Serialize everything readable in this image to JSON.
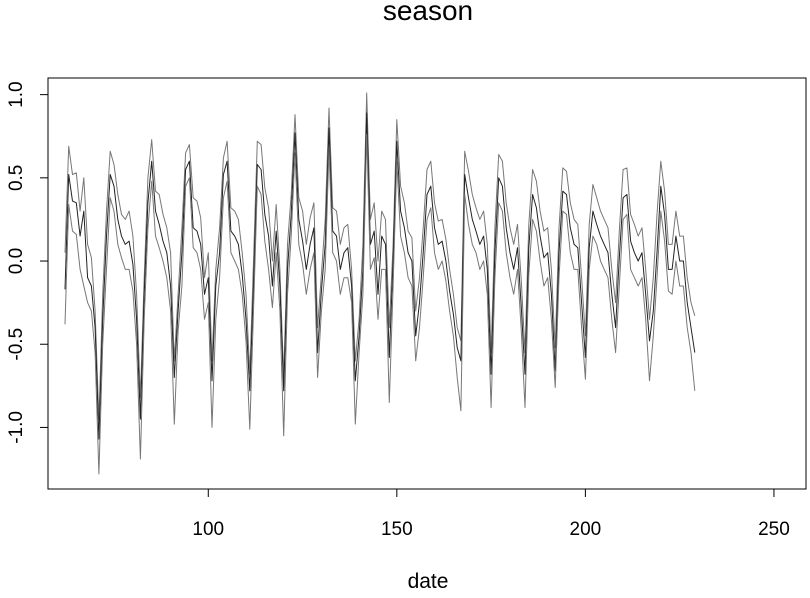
{
  "chart_data": {
    "type": "line",
    "title": "season",
    "xlabel": "date",
    "ylabel": "",
    "xlim": [
      57.5,
      258.5
    ],
    "ylim": [
      -1.37,
      1.1
    ],
    "x_ticks": [
      100,
      150,
      200,
      250
    ],
    "y_ticks": [
      -1.0,
      -0.5,
      0.0,
      0.5,
      1.0
    ],
    "y_tick_labels": [
      "-1.0",
      "-0.5",
      "0.0",
      "0.5",
      "1.0"
    ],
    "grid": false,
    "legend": "none",
    "x_start": 62,
    "x_step": 1,
    "series": [
      {
        "role": "upper",
        "color": "#777777",
        "values": [
          0.05,
          0.69,
          0.52,
          0.53,
          0.3,
          0.5,
          0.1,
          0.02,
          -0.3,
          -0.95,
          -0.2,
          0.3,
          0.66,
          0.58,
          0.4,
          0.28,
          0.25,
          0.3,
          0.15,
          -0.2,
          -0.82,
          -0.1,
          0.5,
          0.73,
          0.42,
          0.4,
          0.28,
          0.2,
          0.05,
          -0.6,
          -0.2,
          0.2,
          0.65,
          0.7,
          0.38,
          0.36,
          0.26,
          -0.1,
          0.05,
          -0.6,
          -0.05,
          0.2,
          0.62,
          0.72,
          0.32,
          0.3,
          0.25,
          0.05,
          -0.2,
          -0.68,
          0.0,
          0.72,
          0.7,
          0.44,
          0.32,
          0.0,
          0.34,
          -0.05,
          -0.7,
          0.1,
          0.4,
          0.88,
          0.38,
          0.3,
          0.1,
          0.26,
          0.35,
          -0.4,
          -0.08,
          0.25,
          0.92,
          0.32,
          0.3,
          0.1,
          0.2,
          0.22,
          -0.05,
          -0.6,
          -0.35,
          0.1,
          1.01,
          0.25,
          0.35,
          0.0,
          0.3,
          0.25,
          -0.4,
          0.1,
          0.85,
          0.45,
          0.35,
          0.18,
          0.14,
          -0.3,
          -0.1,
          0.2,
          0.55,
          0.6,
          0.35,
          0.24,
          0.25,
          0.13,
          -0.05,
          -0.2,
          -0.4,
          -0.48,
          0.66,
          0.54,
          0.4,
          0.32,
          0.25,
          0.3,
          0.1,
          -0.55,
          0.2,
          0.64,
          0.6,
          0.35,
          0.2,
          0.1,
          0.22,
          -0.12,
          -0.55,
          0.22,
          0.55,
          0.48,
          0.3,
          0.18,
          0.2,
          -0.05,
          -0.52,
          0.2,
          0.56,
          0.54,
          0.35,
          0.25,
          0.22,
          -0.1,
          -0.45,
          0.22,
          0.46,
          0.38,
          0.3,
          0.25,
          0.2,
          -0.05,
          -0.25,
          0.18,
          0.55,
          0.56,
          0.28,
          0.22,
          0.15,
          0.2,
          -0.05,
          -0.35,
          -0.1,
          0.28,
          0.6,
          0.42,
          0.1,
          0.1,
          0.3,
          0.15,
          0.15,
          -0.1,
          -0.25,
          -0.33
        ]
      },
      {
        "role": "fit",
        "color": "#222222",
        "values": [
          -0.17,
          0.52,
          0.36,
          0.35,
          0.15,
          0.3,
          -0.1,
          -0.15,
          -0.4,
          -1.07,
          -0.35,
          0.15,
          0.52,
          0.45,
          0.25,
          0.15,
          0.1,
          0.12,
          -0.02,
          -0.35,
          -0.95,
          -0.2,
          0.35,
          0.6,
          0.3,
          0.22,
          0.12,
          0.05,
          -0.15,
          -0.7,
          -0.3,
          0.05,
          0.55,
          0.6,
          0.2,
          0.18,
          0.1,
          -0.2,
          -0.1,
          -0.72,
          -0.15,
          0.05,
          0.52,
          0.6,
          0.18,
          0.15,
          0.1,
          -0.08,
          -0.35,
          -0.78,
          -0.15,
          0.58,
          0.55,
          0.28,
          0.15,
          -0.15,
          0.18,
          -0.15,
          -0.78,
          -0.05,
          0.28,
          0.77,
          0.25,
          0.12,
          -0.05,
          0.1,
          0.2,
          -0.55,
          -0.18,
          0.1,
          0.8,
          0.18,
          0.15,
          -0.05,
          0.05,
          0.08,
          -0.15,
          -0.72,
          -0.45,
          -0.05,
          0.89,
          0.1,
          0.18,
          -0.2,
          0.15,
          0.1,
          -0.58,
          0.0,
          0.72,
          0.3,
          0.2,
          0.05,
          0.0,
          -0.45,
          -0.25,
          0.05,
          0.4,
          0.45,
          0.2,
          0.1,
          0.12,
          0.0,
          -0.18,
          -0.32,
          -0.52,
          -0.6,
          0.52,
          0.38,
          0.25,
          0.18,
          0.1,
          0.15,
          -0.05,
          -0.68,
          0.05,
          0.5,
          0.45,
          0.2,
          0.05,
          -0.05,
          0.08,
          -0.28,
          -0.68,
          0.08,
          0.4,
          0.32,
          0.15,
          0.02,
          0.05,
          -0.2,
          -0.66,
          0.05,
          0.42,
          0.4,
          0.2,
          0.1,
          0.08,
          -0.25,
          -0.58,
          0.08,
          0.3,
          0.22,
          0.15,
          0.1,
          0.05,
          -0.2,
          -0.4,
          0.02,
          0.38,
          0.4,
          0.12,
          0.05,
          0.0,
          0.05,
          -0.2,
          -0.48,
          -0.3,
          0.05,
          0.45,
          0.28,
          -0.05,
          -0.05,
          0.15,
          0.0,
          0.0,
          -0.25,
          -0.4,
          -0.55
        ]
      },
      {
        "role": "lower",
        "color": "#777777",
        "values": [
          -0.38,
          0.34,
          0.18,
          0.16,
          -0.05,
          -0.15,
          -0.25,
          -0.3,
          -0.55,
          -1.28,
          -0.5,
          -0.05,
          0.38,
          0.3,
          0.1,
          0.02,
          -0.05,
          -0.05,
          -0.18,
          -0.5,
          -1.19,
          -0.35,
          0.2,
          0.48,
          0.15,
          0.08,
          0.0,
          -0.1,
          -0.3,
          -0.98,
          -0.42,
          -0.15,
          0.45,
          0.5,
          0.08,
          0.05,
          -0.05,
          -0.35,
          -0.25,
          -1.0,
          -0.35,
          -0.1,
          0.38,
          0.48,
          0.05,
          0.0,
          -0.05,
          -0.2,
          -0.48,
          -1.01,
          -0.3,
          0.45,
          0.4,
          0.12,
          -0.05,
          -0.28,
          0.05,
          -0.3,
          -1.05,
          -0.2,
          0.15,
          0.65,
          0.1,
          -0.02,
          -0.2,
          -0.05,
          0.05,
          -0.7,
          -0.3,
          -0.05,
          0.67,
          0.05,
          0.0,
          -0.2,
          -0.1,
          -0.1,
          -0.25,
          -0.98,
          -0.55,
          -0.2,
          0.76,
          -0.05,
          0.02,
          -0.35,
          -0.05,
          -0.05,
          -0.85,
          -0.15,
          0.6,
          0.15,
          0.05,
          -0.1,
          -0.15,
          -0.6,
          -0.4,
          -0.1,
          0.25,
          0.32,
          0.05,
          -0.05,
          0.0,
          -0.12,
          -0.3,
          -0.45,
          -0.7,
          -0.9,
          0.4,
          0.22,
          0.1,
          0.05,
          -0.05,
          0.0,
          -0.2,
          -0.88,
          -0.1,
          0.35,
          0.3,
          0.05,
          -0.1,
          -0.2,
          -0.05,
          -0.42,
          -0.88,
          -0.08,
          0.25,
          0.18,
          0.0,
          -0.15,
          -0.1,
          -0.35,
          -0.76,
          -0.1,
          0.3,
          0.28,
          0.05,
          -0.05,
          -0.05,
          -0.4,
          -0.71,
          -0.05,
          0.15,
          0.1,
          0.0,
          -0.05,
          -0.1,
          -0.35,
          -0.55,
          -0.15,
          0.25,
          0.28,
          -0.05,
          -0.1,
          -0.15,
          -0.1,
          -0.35,
          -0.72,
          -0.45,
          -0.1,
          0.3,
          0.12,
          -0.18,
          -0.2,
          0.0,
          -0.15,
          -0.15,
          -0.4,
          -0.55,
          -0.78
        ]
      }
    ]
  }
}
